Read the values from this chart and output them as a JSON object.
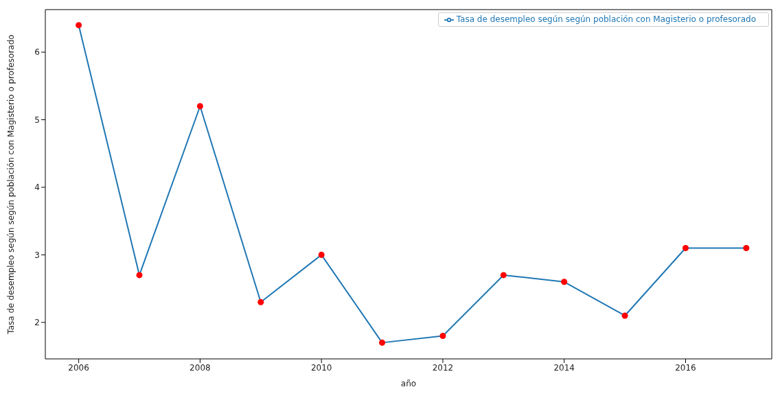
{
  "chart_data": {
    "type": "line",
    "xlabel": "año",
    "ylabel": "Tasa de desempleo según según población con Magisterio o profesorado",
    "x": [
      2006,
      2007,
      2008,
      2009,
      2010,
      2011,
      2012,
      2013,
      2014,
      2015,
      2016,
      2017
    ],
    "series": [
      {
        "name": "Tasa de desempleo según según población con Magisterio o profesorado",
        "color": "#1f77b4",
        "values": [
          6.4,
          2.7,
          5.2,
          2.3,
          3.0,
          1.7,
          1.8,
          2.7,
          2.6,
          2.1,
          3.1,
          3.1
        ]
      },
      {
        "type": "scatter",
        "color": "#ff0000",
        "marker": "circle",
        "values": [
          6.4,
          2.7,
          5.2,
          2.3,
          3.0,
          1.7,
          1.8,
          2.7,
          2.6,
          2.1,
          3.1,
          3.1
        ]
      }
    ],
    "xlim": [
      2005.45,
      2017.42
    ],
    "xticks": [
      2006,
      2008,
      2010,
      2012,
      2014,
      2016
    ],
    "ylim": [
      1.46,
      6.63
    ],
    "yticks": [
      2,
      3,
      4,
      5,
      6
    ],
    "legend": "top right"
  }
}
